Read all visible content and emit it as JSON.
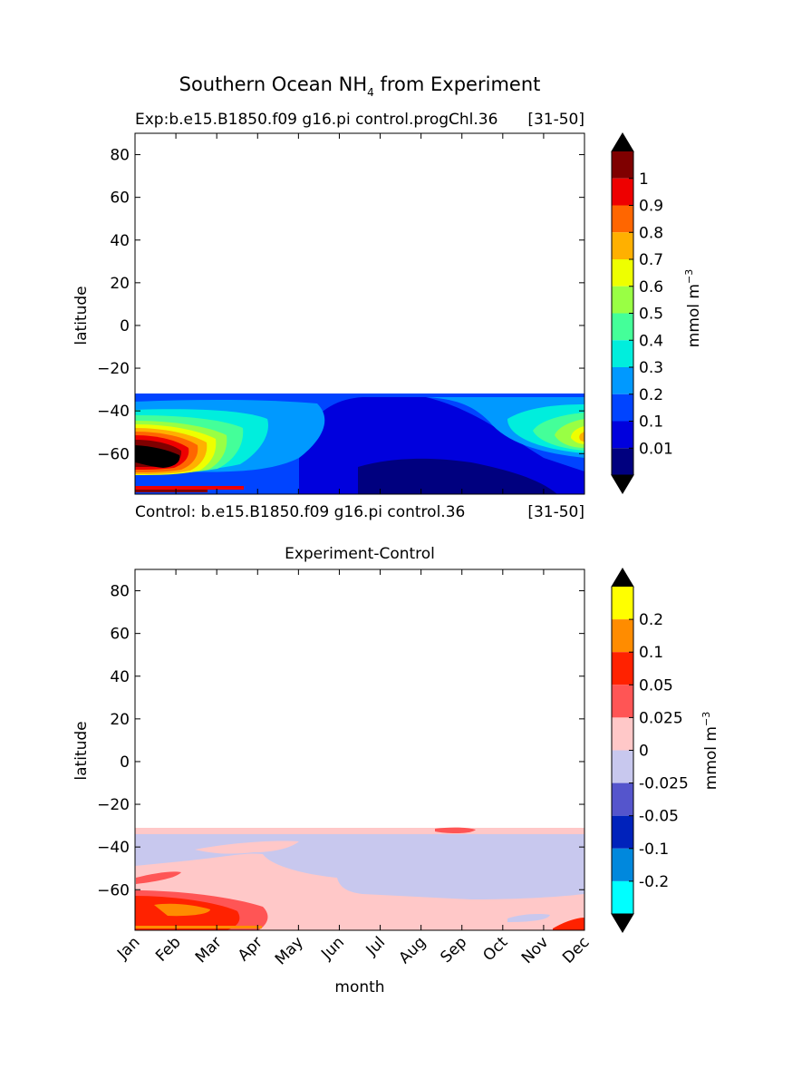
{
  "figure": {
    "title_main": "Southern Ocean NH",
    "title_sub": "4",
    "title_rest": " from Experiment"
  },
  "chart_data": [
    {
      "type": "contour",
      "title_left": "Exp:b.e15.B1850.f09 g16.pi control.progChl.36",
      "title_right": "[31-50]",
      "footer_left": "Control: b.e15.B1850.f09 g16.pi control.36",
      "footer_right": "[31-50]",
      "ylabel": "latitude",
      "yticks": [
        80,
        60,
        40,
        20,
        0,
        -20,
        -40,
        -60
      ],
      "ytick_labels": [
        "80",
        "60",
        "40",
        "20",
        "0",
        "−20",
        "−40",
        "−60"
      ],
      "ylim": [
        -79,
        90
      ],
      "xlim": [
        0,
        11
      ],
      "data_lat_range": [
        -79,
        -32
      ],
      "colorbar": {
        "label": "mmol m",
        "label_sup": "−3",
        "extend": "both",
        "labels": [
          "1",
          "0.9",
          "0.8",
          "0.7",
          "0.6",
          "0.5",
          "0.4",
          "0.3",
          "0.2",
          "0.1",
          "0.01"
        ],
        "colors": [
          "#7f0000",
          "#ee0000",
          "#ff6600",
          "#ffb000",
          "#eeff00",
          "#99ff44",
          "#44ff99",
          "#00eedd",
          "#0099ff",
          "#0044ff",
          "#0000dd",
          "#00007f"
        ],
        "extend_color": "#000000"
      }
    },
    {
      "type": "contour",
      "title": "Experiment-Control",
      "ylabel": "latitude",
      "xlabel": "month",
      "categories": [
        "Jan",
        "Feb",
        "Mar",
        "Apr",
        "May",
        "Jun",
        "Jul",
        "Aug",
        "Sep",
        "Oct",
        "Nov",
        "Dec"
      ],
      "yticks": [
        80,
        60,
        40,
        20,
        0,
        -20,
        -40,
        -60
      ],
      "ytick_labels": [
        "80",
        "60",
        "40",
        "20",
        "0",
        "−20",
        "−40",
        "−60"
      ],
      "ylim": [
        -79,
        90
      ],
      "xlim": [
        0,
        11
      ],
      "data_lat_range": [
        -79,
        -32
      ],
      "colorbar": {
        "label": "mmol m",
        "label_sup": "−3",
        "extend": "both",
        "labels": [
          "0.2",
          "0.1",
          "0.05",
          "0.025",
          "0",
          "-0.025",
          "-0.05",
          "-0.1",
          "-0.2"
        ],
        "colors": [
          "#ffff00",
          "#ff8c00",
          "#ff2200",
          "#ff5555",
          "#ffc8c8",
          "#c8c8ee",
          "#5555cc",
          "#0022bb",
          "#0088dd",
          "#00ffff"
        ],
        "extend_color": "#000000"
      }
    }
  ]
}
